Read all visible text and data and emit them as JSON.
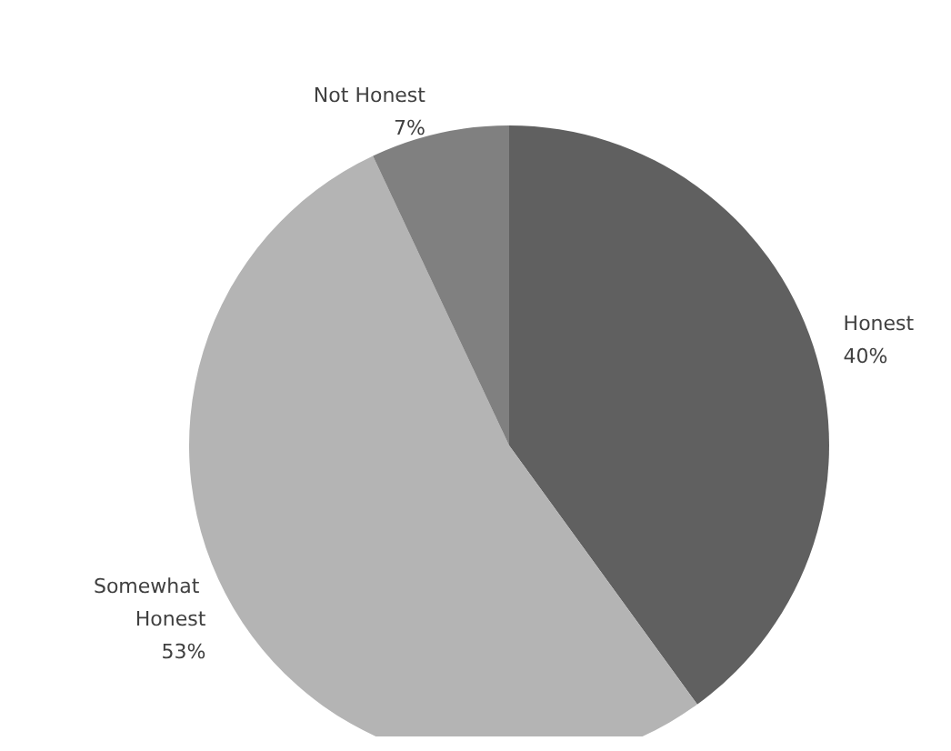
{
  "chart_data": {
    "type": "pie",
    "categories": [
      "Honest",
      "Somewhat Honest",
      "Not Honest"
    ],
    "values": [
      40,
      53,
      7
    ],
    "colors": [
      "#606060",
      "#b4b4b4",
      "#808080"
    ],
    "value_labels": [
      "40%",
      "53%",
      "7%"
    ]
  }
}
